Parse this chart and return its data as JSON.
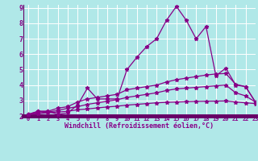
{
  "title": "",
  "xlabel": "Windchill (Refroidissement éolien,°C)",
  "background_color": "#b0e8e8",
  "grid_color": "#ffffff",
  "line_color": "#880088",
  "axis_bar_color": "#660066",
  "xlim": [
    -0.5,
    23
  ],
  "ylim": [
    2,
    9.2
  ],
  "yticks": [
    2,
    3,
    4,
    5,
    6,
    7,
    8,
    9
  ],
  "xtick_labels": [
    "0",
    "1",
    "2",
    "3",
    "4",
    "5",
    "6",
    "7",
    "8",
    "9",
    "10",
    "11",
    "12",
    "13",
    "14",
    "15",
    "16",
    "17",
    "18",
    "19",
    "20",
    "21",
    "22",
    "23"
  ],
  "xtick_positions": [
    0,
    1,
    2,
    3,
    4,
    5,
    6,
    7,
    8,
    9,
    10,
    11,
    12,
    13,
    14,
    15,
    16,
    17,
    18,
    19,
    20,
    21,
    22,
    23
  ],
  "series": [
    [
      2.1,
      2.3,
      2.3,
      2.1,
      2.2,
      2.7,
      3.8,
      3.1,
      3.1,
      3.1,
      5.0,
      5.8,
      6.5,
      7.0,
      8.2,
      9.1,
      8.2,
      7.0,
      7.8,
      4.6,
      5.1,
      4.0,
      3.9,
      2.9
    ],
    [
      2.1,
      2.3,
      2.3,
      2.5,
      2.6,
      2.9,
      3.1,
      3.2,
      3.3,
      3.4,
      3.7,
      3.8,
      3.9,
      4.0,
      4.2,
      4.35,
      4.45,
      4.55,
      4.65,
      4.72,
      4.75,
      4.05,
      3.9,
      2.9
    ],
    [
      2.1,
      2.2,
      2.25,
      2.35,
      2.5,
      2.6,
      2.75,
      2.85,
      2.95,
      3.05,
      3.2,
      3.3,
      3.4,
      3.5,
      3.65,
      3.75,
      3.8,
      3.85,
      3.9,
      3.95,
      4.0,
      3.5,
      3.3,
      2.9
    ],
    [
      2.1,
      2.15,
      2.2,
      2.25,
      2.3,
      2.4,
      2.45,
      2.52,
      2.58,
      2.63,
      2.7,
      2.75,
      2.8,
      2.85,
      2.88,
      2.9,
      2.92,
      2.94,
      2.95,
      2.96,
      2.97,
      2.9,
      2.85,
      2.8
    ]
  ]
}
